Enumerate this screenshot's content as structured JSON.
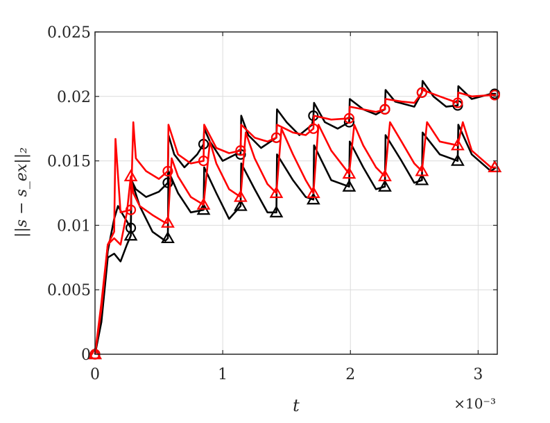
{
  "chart_data": {
    "type": "line",
    "title": "",
    "xlabel": "t",
    "ylabel": "||s − s_ex||₂",
    "x_exponent_label": "×10⁻³",
    "xlim": [
      0,
      3.15
    ],
    "ylim": [
      0,
      0.025
    ],
    "xticks": [
      0,
      1,
      2,
      3
    ],
    "xtick_labels": [
      "0",
      "1",
      "2",
      "3"
    ],
    "yticks": [
      0,
      0.005,
      0.01,
      0.015,
      0.02,
      0.025
    ],
    "ytick_labels": [
      "0",
      "0.005",
      "0.01",
      "0.015",
      "0.02",
      "0.025"
    ],
    "grid": true,
    "series": [
      {
        "color": "#000000",
        "marker": "circle",
        "x": [
          0,
          0.05,
          0.1,
          0.15,
          0.18,
          0.22,
          0.28,
          0.285,
          0.32,
          0.4,
          0.5,
          0.57,
          0.575,
          0.62,
          0.7,
          0.8,
          0.85,
          0.855,
          0.9,
          1.0,
          1.1,
          1.14,
          1.145,
          1.2,
          1.3,
          1.42,
          1.425,
          1.5,
          1.6,
          1.7,
          1.71,
          1.715,
          1.8,
          1.9,
          1.99,
          1.995,
          2.1,
          2.2,
          2.27,
          2.275,
          2.35,
          2.5,
          2.56,
          2.565,
          2.65,
          2.75,
          2.84,
          2.845,
          2.95,
          3.1,
          3.14
        ],
        "y": [
          0,
          0.003,
          0.008,
          0.0105,
          0.0115,
          0.0108,
          0.0098,
          0.0135,
          0.0128,
          0.0122,
          0.0126,
          0.0133,
          0.017,
          0.0155,
          0.0145,
          0.0155,
          0.0163,
          0.0175,
          0.0165,
          0.015,
          0.0155,
          0.0155,
          0.0185,
          0.017,
          0.016,
          0.0168,
          0.019,
          0.018,
          0.017,
          0.0178,
          0.0185,
          0.0195,
          0.018,
          0.0175,
          0.018,
          0.0198,
          0.019,
          0.0186,
          0.019,
          0.0205,
          0.0196,
          0.0192,
          0.0203,
          0.0212,
          0.02,
          0.0192,
          0.0193,
          0.0208,
          0.0198,
          0.0202,
          0.0202
        ],
        "marker_x": [
          0,
          0.28,
          0.57,
          0.85,
          1.14,
          1.42,
          1.71,
          1.99,
          2.27,
          2.56,
          2.84,
          3.13
        ],
        "marker_y": [
          0,
          0.0098,
          0.0133,
          0.0163,
          0.0155,
          0.0168,
          0.0185,
          0.018,
          0.019,
          0.0203,
          0.0193,
          0.0202
        ]
      },
      {
        "color": "#000000",
        "marker": "triangle",
        "x": [
          0,
          0.05,
          0.1,
          0.15,
          0.2,
          0.25,
          0.28,
          0.285,
          0.35,
          0.45,
          0.55,
          0.57,
          0.575,
          0.65,
          0.75,
          0.85,
          0.855,
          0.95,
          1.05,
          1.14,
          1.145,
          1.25,
          1.35,
          1.42,
          1.425,
          1.55,
          1.65,
          1.71,
          1.715,
          1.85,
          1.99,
          1.995,
          2.1,
          2.2,
          2.27,
          2.275,
          2.4,
          2.5,
          2.56,
          2.565,
          2.7,
          2.84,
          2.845,
          2.95,
          3.1,
          3.14
        ],
        "y": [
          0,
          0.0025,
          0.0075,
          0.0078,
          0.0072,
          0.0085,
          0.0092,
          0.0135,
          0.0115,
          0.0095,
          0.0088,
          0.009,
          0.0142,
          0.0125,
          0.011,
          0.0112,
          0.0145,
          0.0125,
          0.0105,
          0.0115,
          0.0148,
          0.0128,
          0.011,
          0.011,
          0.0155,
          0.0135,
          0.0122,
          0.012,
          0.0162,
          0.0135,
          0.013,
          0.0165,
          0.0145,
          0.0128,
          0.013,
          0.017,
          0.015,
          0.0133,
          0.0135,
          0.0172,
          0.0155,
          0.015,
          0.0178,
          0.0155,
          0.0142,
          0.0145
        ],
        "marker_x": [
          0,
          0.28,
          0.57,
          0.85,
          1.14,
          1.42,
          1.71,
          1.99,
          2.27,
          2.56,
          2.84,
          3.13
        ],
        "marker_y": [
          0,
          0.0092,
          0.009,
          0.0112,
          0.0115,
          0.011,
          0.012,
          0.013,
          0.013,
          0.0135,
          0.015,
          0.0145
        ]
      },
      {
        "color": "#ff0000",
        "marker": "circle",
        "x": [
          0,
          0.05,
          0.1,
          0.15,
          0.16,
          0.2,
          0.28,
          0.3,
          0.32,
          0.4,
          0.5,
          0.57,
          0.575,
          0.65,
          0.75,
          0.85,
          0.855,
          0.95,
          1.05,
          1.14,
          1.145,
          1.25,
          1.35,
          1.42,
          1.425,
          1.55,
          1.65,
          1.71,
          1.715,
          1.85,
          1.99,
          1.995,
          2.1,
          2.2,
          2.27,
          2.275,
          2.4,
          2.5,
          2.56,
          2.565,
          2.7,
          2.84,
          2.845,
          2.95,
          3.1,
          3.14
        ],
        "y": [
          0,
          0.004,
          0.0085,
          0.0095,
          0.0167,
          0.011,
          0.0112,
          0.018,
          0.0152,
          0.0142,
          0.0136,
          0.0142,
          0.0178,
          0.0155,
          0.0148,
          0.015,
          0.0178,
          0.016,
          0.0156,
          0.0158,
          0.0178,
          0.0168,
          0.0165,
          0.0168,
          0.0178,
          0.0172,
          0.017,
          0.0175,
          0.0185,
          0.0182,
          0.0183,
          0.0192,
          0.019,
          0.0188,
          0.019,
          0.0198,
          0.0196,
          0.0195,
          0.0203,
          0.0205,
          0.02,
          0.0195,
          0.0203,
          0.02,
          0.0201,
          0.0201
        ],
        "marker_x": [
          0,
          0.28,
          0.57,
          0.85,
          1.14,
          1.42,
          1.71,
          1.99,
          2.27,
          2.56,
          2.84,
          3.13
        ],
        "marker_y": [
          0,
          0.0112,
          0.0142,
          0.015,
          0.0158,
          0.0168,
          0.0175,
          0.0183,
          0.019,
          0.0203,
          0.0195,
          0.0201
        ]
      },
      {
        "color": "#ff0000",
        "marker": "triangle",
        "x": [
          0,
          0.05,
          0.1,
          0.15,
          0.2,
          0.25,
          0.28,
          0.3,
          0.35,
          0.45,
          0.55,
          0.57,
          0.6,
          0.65,
          0.75,
          0.85,
          0.9,
          0.95,
          1.05,
          1.14,
          1.18,
          1.25,
          1.35,
          1.42,
          1.46,
          1.55,
          1.65,
          1.71,
          1.75,
          1.85,
          1.99,
          2.03,
          2.1,
          2.2,
          2.27,
          2.31,
          2.4,
          2.5,
          2.56,
          2.6,
          2.7,
          2.84,
          2.88,
          2.95,
          3.1,
          3.14
        ],
        "y": [
          0,
          0.0035,
          0.0085,
          0.009,
          0.0085,
          0.011,
          0.0138,
          0.0125,
          0.0115,
          0.0108,
          0.0102,
          0.0102,
          0.0152,
          0.0138,
          0.0122,
          0.0116,
          0.0165,
          0.0148,
          0.0128,
          0.0122,
          0.0172,
          0.0152,
          0.0132,
          0.0125,
          0.0175,
          0.0155,
          0.0135,
          0.0125,
          0.0178,
          0.0158,
          0.014,
          0.0178,
          0.0162,
          0.0145,
          0.0138,
          0.018,
          0.0165,
          0.0148,
          0.0142,
          0.018,
          0.0165,
          0.0162,
          0.018,
          0.0158,
          0.0145,
          0.0145
        ],
        "marker_x": [
          0,
          0.28,
          0.57,
          0.85,
          1.14,
          1.42,
          1.71,
          1.99,
          2.27,
          2.56,
          2.84,
          3.13
        ],
        "marker_y": [
          0,
          0.0138,
          0.0102,
          0.0116,
          0.0122,
          0.0125,
          0.0125,
          0.014,
          0.0138,
          0.0142,
          0.0162,
          0.0145
        ]
      }
    ]
  }
}
